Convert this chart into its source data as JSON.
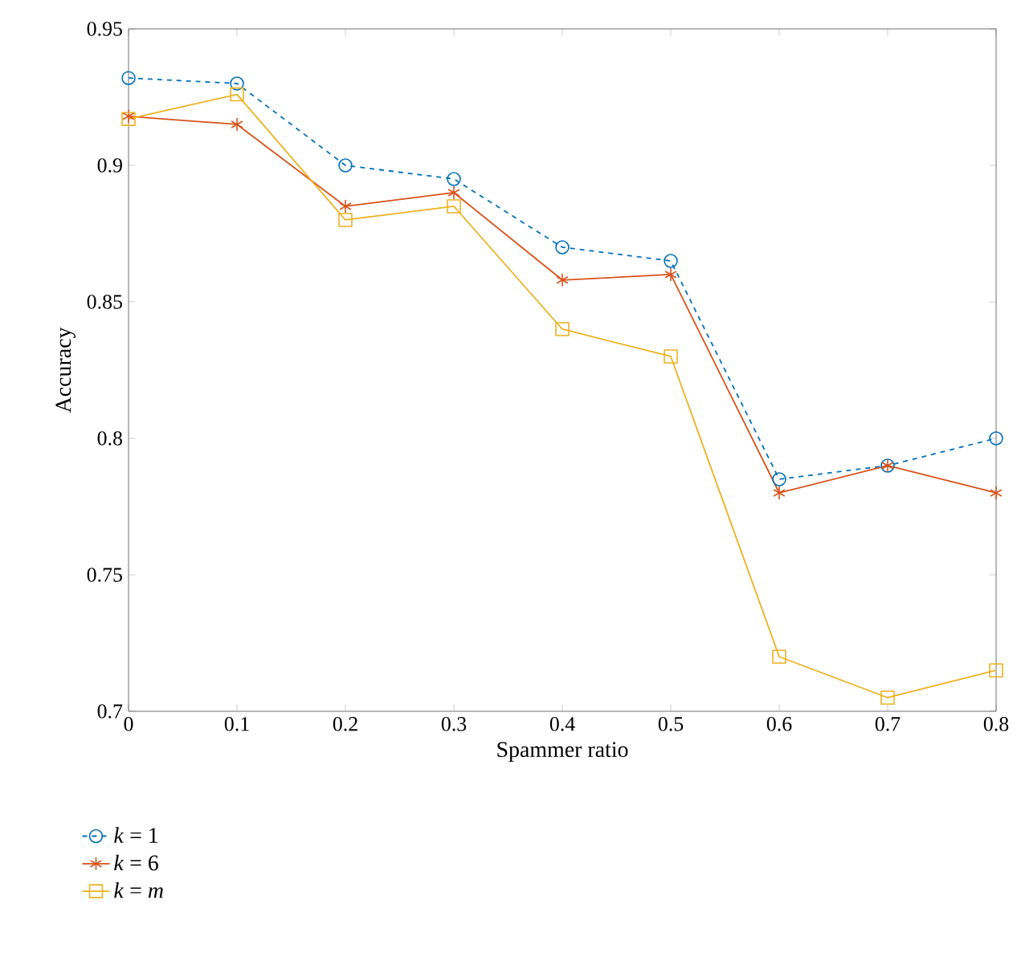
{
  "chart_data": {
    "type": "line",
    "xlabel": "Spammer ratio",
    "ylabel": "Accuracy",
    "x": [
      0,
      0.1,
      0.2,
      0.3,
      0.4,
      0.5,
      0.6,
      0.7,
      0.8
    ],
    "xlim": [
      0,
      0.8
    ],
    "xticks": [
      0,
      0.1,
      0.2,
      0.3,
      0.4,
      0.5,
      0.6,
      0.7,
      0.8
    ],
    "ylim": [
      0.7,
      0.95
    ],
    "yticks": [
      0.7,
      0.75,
      0.8,
      0.85,
      0.9,
      0.95
    ],
    "legend": "bottom left",
    "series": [
      {
        "name": "*k* = 1",
        "color": "#0072bd",
        "marker": "circle",
        "line_style": "dashed",
        "values": [
          0.932,
          0.93,
          0.9,
          0.895,
          0.87,
          0.865,
          0.785,
          0.79,
          0.8
        ]
      },
      {
        "name": "*k* = 6",
        "color": "#d95319",
        "marker": "cross",
        "line_style": "solid",
        "values": [
          0.918,
          0.915,
          0.885,
          0.89,
          0.858,
          0.86,
          0.78,
          0.79,
          0.78
        ]
      },
      {
        "name": "*k* = *m*",
        "color": "#edb120",
        "marker": "square",
        "line_style": "solid",
        "values": [
          0.917,
          0.926,
          0.88,
          0.885,
          0.84,
          0.83,
          0.72,
          0.705,
          0.715
        ]
      }
    ]
  }
}
